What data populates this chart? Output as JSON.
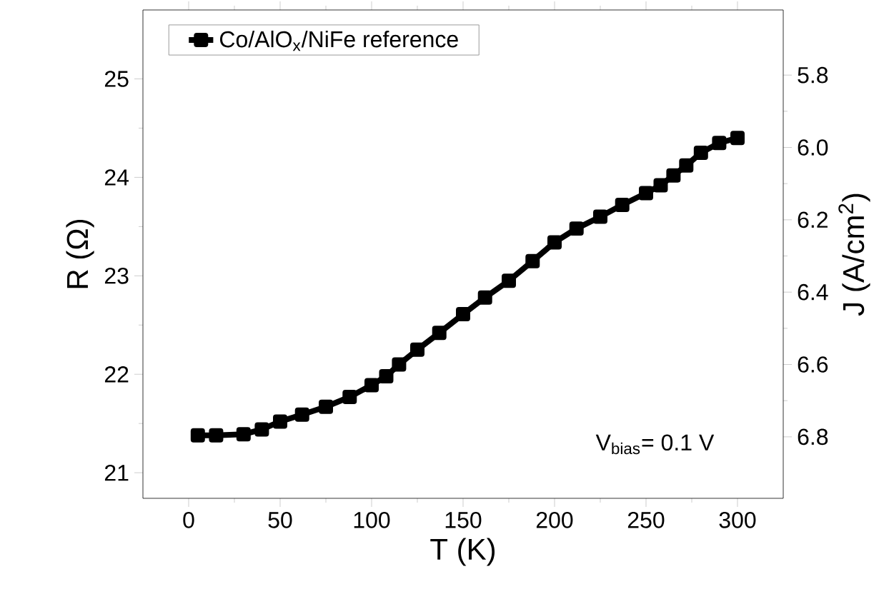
{
  "chart_data": {
    "type": "line",
    "xlabel": "T (K)",
    "ylabel": "R (Ω)",
    "y2label": "J (A/cm$^{2}$)",
    "xlim": [
      -25,
      325
    ],
    "xticks": [
      0,
      50,
      100,
      150,
      200,
      250,
      300
    ],
    "ylim": [
      20.74,
      25.7
    ],
    "yticks": [
      21,
      22,
      23,
      24,
      25
    ],
    "y2lim": [
      6.97,
      5.62
    ],
    "y2ticks": [
      {
        "value": 5.8,
        "label": "5.8"
      },
      {
        "value": 6.0,
        "label": "6.0"
      },
      {
        "value": 6.2,
        "label": "6.2"
      },
      {
        "value": 6.4,
        "label": "6.4"
      },
      {
        "value": 6.6,
        "label": "6.6"
      },
      {
        "value": 6.8,
        "label": "6.8"
      }
    ],
    "x": [
      5,
      15,
      30,
      40,
      50,
      62,
      75,
      88,
      100,
      108,
      115,
      125,
      137,
      150,
      162,
      175,
      188,
      200,
      212,
      225,
      237,
      250,
      258,
      265,
      272,
      280,
      290,
      300
    ],
    "series": [
      {
        "name": "Co/AlO$_{x}$/NiFe reference",
        "color": "#000000",
        "values": [
          21.38,
          21.38,
          21.39,
          21.44,
          21.52,
          21.59,
          21.67,
          21.77,
          21.89,
          21.98,
          22.1,
          22.25,
          22.42,
          22.61,
          22.78,
          22.95,
          23.15,
          23.34,
          23.48,
          23.6,
          23.72,
          23.84,
          23.92,
          24.02,
          24.12,
          24.25,
          24.35,
          24.4
        ]
      }
    ],
    "marker": "square",
    "line_style": "solid",
    "legend": "top left",
    "annotations": [
      "V$_{bias}$= 0.1 V"
    ]
  }
}
